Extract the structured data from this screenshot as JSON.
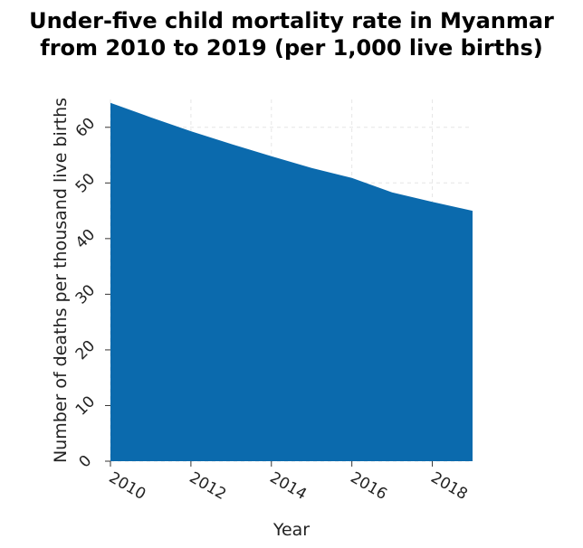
{
  "chart_data": {
    "type": "area",
    "title_line1": "Under-five child mortality rate in Myanmar",
    "title_line2": "from 2010 to 2019 (per 1,000 live births)",
    "xlabel": "Year",
    "ylabel": "Number of deaths per thousand live births",
    "x": [
      2010,
      2011,
      2012,
      2013,
      2014,
      2015,
      2016,
      2017,
      2018,
      2019
    ],
    "values": [
      64.4,
      61.8,
      59.3,
      57.0,
      54.8,
      52.7,
      50.9,
      48.3,
      46.6,
      45.0
    ],
    "xlim": [
      2010,
      2019
    ],
    "ylim": [
      0,
      65
    ],
    "xticks": [
      "2010",
      "2012",
      "2014",
      "2016",
      "2018"
    ],
    "yticks": [
      "0",
      "10",
      "20",
      "30",
      "40",
      "50",
      "60"
    ],
    "grid": true,
    "fill_color": "#0b6aad"
  }
}
